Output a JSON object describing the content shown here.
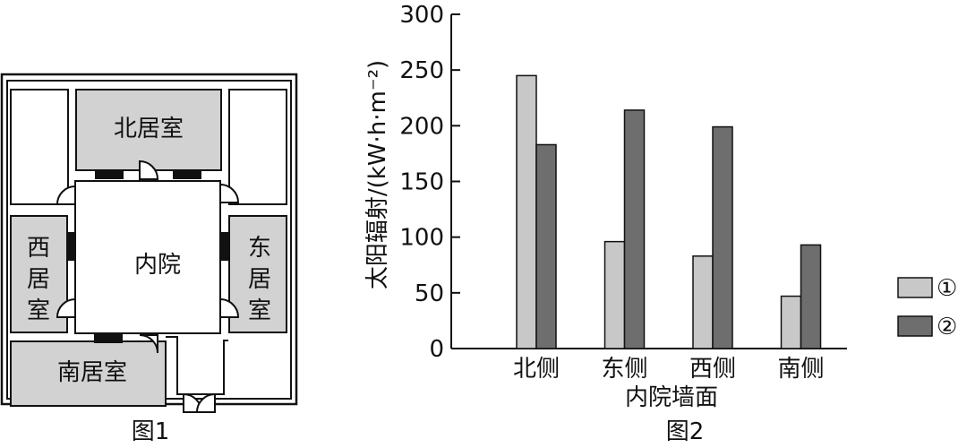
{
  "figure1": {
    "caption": "图1",
    "north_room": "北居室",
    "west_room": [
      "西",
      "居",
      "室"
    ],
    "east_room": [
      "东",
      "居",
      "室"
    ],
    "courtyard": "内院",
    "south_room": "南居室"
  },
  "figure2": {
    "caption": "图2"
  },
  "chart_data": {
    "type": "bar",
    "ylabel": "太阳辐射/(kW·h·m⁻²)",
    "xlabel": "内院墙面",
    "categories": [
      "北侧",
      "东侧",
      "西侧",
      "南侧"
    ],
    "series": [
      {
        "name": "①",
        "values": [
          245,
          96,
          83,
          47
        ],
        "color": "#c8c8c8"
      },
      {
        "name": "②",
        "values": [
          183,
          214,
          199,
          93
        ],
        "color": "#6e6e6e"
      }
    ],
    "yticks": [
      "0",
      "50",
      "100",
      "150",
      "200",
      "250",
      "300"
    ],
    "ylim": [
      0,
      300
    ],
    "legend": "right",
    "grid": false
  }
}
